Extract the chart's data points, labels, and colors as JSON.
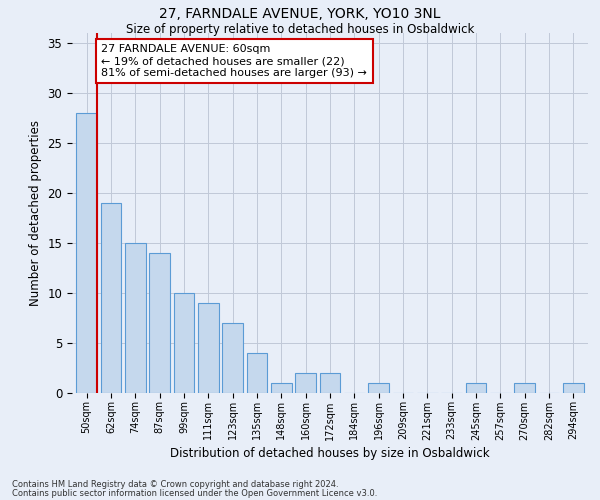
{
  "title": "27, FARNDALE AVENUE, YORK, YO10 3NL",
  "subtitle": "Size of property relative to detached houses in Osbaldwick",
  "xlabel": "Distribution of detached houses by size in Osbaldwick",
  "ylabel": "Number of detached properties",
  "categories": [
    "50sqm",
    "62sqm",
    "74sqm",
    "87sqm",
    "99sqm",
    "111sqm",
    "123sqm",
    "135sqm",
    "148sqm",
    "160sqm",
    "172sqm",
    "184sqm",
    "196sqm",
    "209sqm",
    "221sqm",
    "233sqm",
    "245sqm",
    "257sqm",
    "270sqm",
    "282sqm",
    "294sqm"
  ],
  "values": [
    28,
    19,
    15,
    14,
    10,
    9,
    7,
    4,
    1,
    2,
    2,
    0,
    1,
    0,
    0,
    0,
    1,
    0,
    1,
    0,
    1
  ],
  "bar_color": "#c5d8ed",
  "bar_edge_color": "#5b9bd5",
  "vline_color": "#cc0000",
  "annotation_text": "27 FARNDALE AVENUE: 60sqm\n← 19% of detached houses are smaller (22)\n81% of semi-detached houses are larger (93) →",
  "annotation_box_color": "#ffffff",
  "annotation_box_edge": "#cc0000",
  "ylim": [
    0,
    36
  ],
  "yticks": [
    0,
    5,
    10,
    15,
    20,
    25,
    30,
    35
  ],
  "footer_line1": "Contains HM Land Registry data © Crown copyright and database right 2024.",
  "footer_line2": "Contains public sector information licensed under the Open Government Licence v3.0.",
  "background_color": "#e8eef8",
  "grid_color": "#c0c8d8"
}
